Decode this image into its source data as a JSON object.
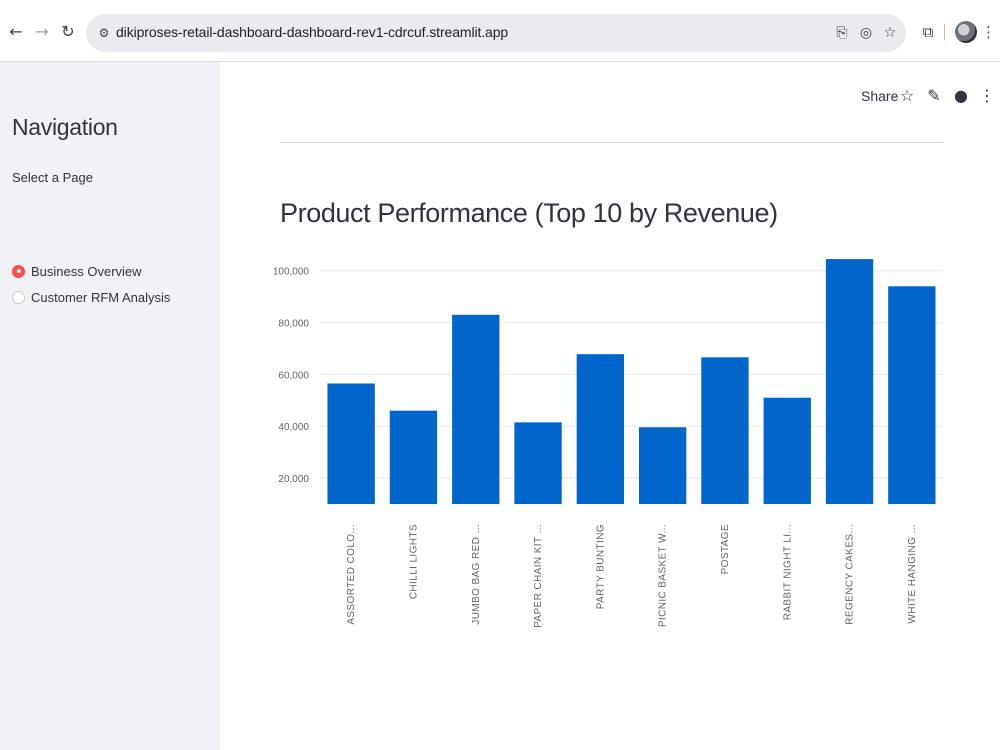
{
  "browser": {
    "url": "dikiproses-retail-dashboard-dashboard-rev1-cdrcuf.streamlit.app",
    "icons": [
      "back-arrow-icon",
      "forward-arrow-icon",
      "reload-icon",
      "site-settings-icon",
      "install-app-icon",
      "eye-slash-icon",
      "star-icon",
      "extensions-icon",
      "profile-avatar",
      "kebab-menu-icon"
    ]
  },
  "sidebar": {
    "title": "Navigation",
    "select_label": "Select a Page",
    "options": [
      {
        "label": "Business Overview",
        "selected": true
      },
      {
        "label": "Customer RFM Analysis",
        "selected": false
      }
    ]
  },
  "toolbar": {
    "share_label": "Share",
    "icons": [
      "star-icon",
      "edit-pencil-icon",
      "github-icon",
      "kebab-menu-icon"
    ]
  },
  "colors": {
    "accent": "#ff4b4b",
    "bar": "#0066cc",
    "sidebar_bg": "#f0f2f6"
  },
  "chart_data": {
    "type": "bar",
    "title": "Product Performance (Top 10 by Revenue)",
    "categories": [
      "ASSORTED COLO...",
      "CHILLI LIGHTS",
      "JUMBO BAG RED ...",
      "PAPER CHAIN KIT ...",
      "PARTY BUNTING",
      "PICNIC BASKET W...",
      "POSTAGE",
      "RABBIT NIGHT LI...",
      "REGENCY CAKES...",
      "WHITE HANGING ..."
    ],
    "values": [
      56500,
      46000,
      83000,
      41500,
      67800,
      39600,
      66600,
      51000,
      104500,
      94000
    ],
    "yticks": [
      20000,
      40000,
      60000,
      80000,
      100000
    ],
    "ytick_labels": [
      "20,000",
      "40,000",
      "60,000",
      "80,000",
      "100,000"
    ],
    "ylim": [
      10000,
      108000
    ],
    "grid": true,
    "xlabel": "",
    "ylabel": ""
  }
}
